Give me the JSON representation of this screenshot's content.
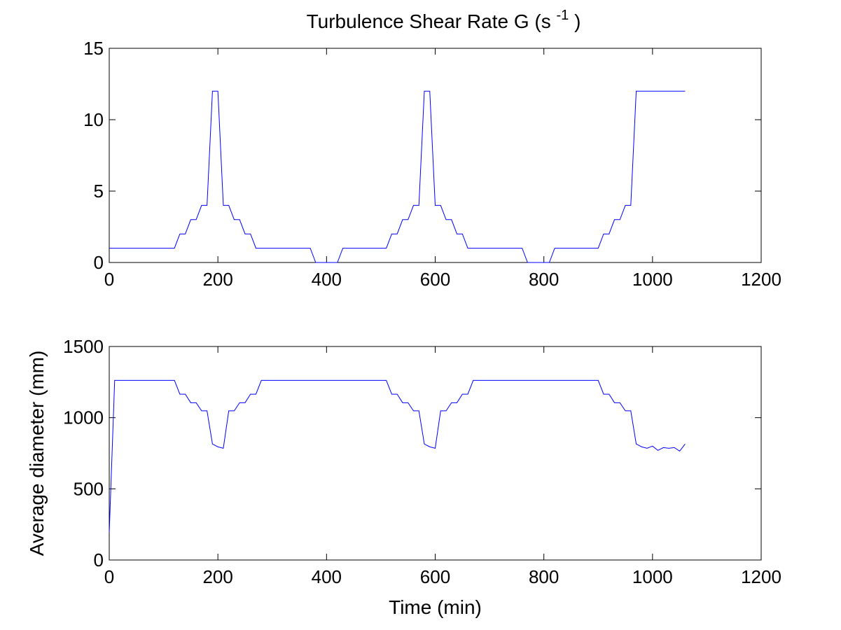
{
  "chart_data": [
    {
      "type": "line",
      "title": "Turbulence Shear Rate G (s",
      "title_sup": "-1",
      "title_end": ")",
      "xlabel": "",
      "ylabel": "",
      "xlim": [
        0,
        1200
      ],
      "ylim": [
        0,
        15
      ],
      "xticks": [
        0,
        200,
        400,
        600,
        800,
        1000,
        1200
      ],
      "yticks": [
        0,
        5,
        10,
        15
      ],
      "grid": false,
      "series": [
        {
          "color": "#0000ff",
          "x": [
            0,
            120,
            130,
            140,
            150,
            160,
            170,
            180,
            190,
            200,
            210,
            220,
            230,
            240,
            250,
            260,
            270,
            280,
            370,
            380,
            420,
            430,
            510,
            520,
            530,
            540,
            550,
            560,
            570,
            580,
            590,
            600,
            610,
            620,
            630,
            640,
            650,
            660,
            670,
            760,
            770,
            810,
            820,
            900,
            910,
            920,
            930,
            940,
            950,
            960,
            970,
            1060
          ],
          "y": [
            1,
            1,
            2,
            2,
            3,
            3,
            4,
            4,
            12,
            12,
            4,
            4,
            3,
            3,
            2,
            2,
            1,
            1,
            1,
            0,
            0,
            1,
            1,
            2,
            2,
            3,
            3,
            4,
            4,
            12,
            12,
            4,
            4,
            3,
            3,
            2,
            2,
            1,
            1,
            1,
            0,
            0,
            1,
            1,
            2,
            2,
            3,
            3,
            4,
            4,
            12,
            12
          ]
        }
      ]
    },
    {
      "type": "line",
      "title": "",
      "xlabel": "Time (min)",
      "ylabel": "Average diameter (mm)",
      "xlim": [
        0,
        1200
      ],
      "ylim": [
        0,
        1500
      ],
      "xticks": [
        0,
        200,
        400,
        600,
        800,
        1000,
        1200
      ],
      "yticks": [
        0,
        500,
        1000,
        1500
      ],
      "grid": false,
      "series": [
        {
          "color": "#0000ff",
          "x": [
            0,
            10,
            120,
            130,
            140,
            150,
            160,
            170,
            180,
            190,
            200,
            210,
            220,
            230,
            240,
            250,
            260,
            270,
            280,
            510,
            520,
            530,
            540,
            550,
            560,
            570,
            580,
            590,
            600,
            610,
            620,
            630,
            640,
            650,
            660,
            670,
            900,
            910,
            920,
            930,
            940,
            950,
            960,
            970,
            980,
            990,
            1000,
            1010,
            1020,
            1030,
            1040,
            1050,
            1060
          ],
          "y": [
            190,
            1262,
            1262,
            1165,
            1165,
            1105,
            1105,
            1048,
            1048,
            815,
            795,
            785,
            1048,
            1048,
            1105,
            1105,
            1165,
            1165,
            1262,
            1262,
            1165,
            1165,
            1105,
            1105,
            1048,
            1048,
            815,
            795,
            785,
            1048,
            1048,
            1105,
            1105,
            1165,
            1165,
            1262,
            1262,
            1165,
            1165,
            1105,
            1105,
            1048,
            1048,
            815,
            795,
            785,
            800,
            770,
            790,
            785,
            790,
            765,
            815
          ]
        }
      ]
    }
  ]
}
